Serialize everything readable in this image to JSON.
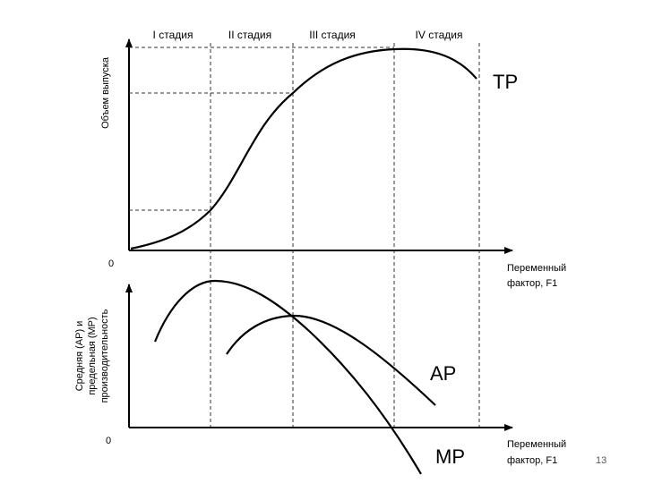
{
  "stages": [
    "I стадия",
    "II стадия",
    "III стадия",
    "IV стадия"
  ],
  "top_chart": {
    "ylabel": "Объем выпуска",
    "curve_label": "TP",
    "origin": "0",
    "xlabel_line1": "Переменный",
    "xlabel_line2": "фактор, F1"
  },
  "bottom_chart": {
    "ylabel_line1": "Средняя (АР) и",
    "ylabel_line2": "предельная (МР)",
    "ylabel_line3": "производительность",
    "ap_label": "AP",
    "mp_label": "MP",
    "origin": "0",
    "xlabel_line1": "Переменный",
    "xlabel_line2": "фактор, F1"
  },
  "page_number": "13"
}
